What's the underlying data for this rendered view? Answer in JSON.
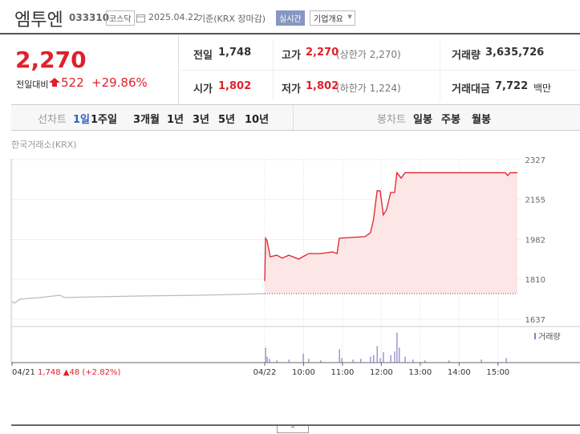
{
  "header": {
    "name": "엠투엔",
    "code": "033310",
    "market": "코스닥",
    "date": "2025.04.22",
    "basis": "기준(KRX 장마감)",
    "realtime": "실시간",
    "overview": "기업개요"
  },
  "quote": {
    "price": "2,270",
    "change_label": "전일대비",
    "change": "522",
    "change_pct": "+29.86%"
  },
  "stats": [
    {
      "label": "전일",
      "value": "1,748"
    },
    {
      "label": "고가",
      "value": "2,270",
      "note": "(상한가 2,270)"
    },
    {
      "label": "거래량",
      "value": "3,635,726"
    },
    {
      "label": "시가",
      "value": "1,802"
    },
    {
      "label": "저가",
      "value": "1,802",
      "note": "(하한가 1,224)"
    },
    {
      "label": "거래대금",
      "value": "7,722",
      "unit": "백만"
    }
  ],
  "tabs": {
    "line_label": "선차트",
    "line": [
      "1일",
      "1주일",
      "3개월",
      "1년",
      "3년",
      "5년",
      "10년"
    ],
    "candle_label": "봉차트",
    "candle": [
      "일봉",
      "주봉",
      "월봉"
    ]
  },
  "chart_data": {
    "type": "line",
    "source": "한국거래소(KRX)",
    "prev_summary": "1,748 ▲48 (+2.82%)",
    "xlim": [
      0,
      13
    ],
    "ylim": [
      1606,
      2330
    ],
    "yticks": [
      1637,
      1810,
      1982,
      2155,
      2327
    ],
    "xticks": [
      {
        "value": 0,
        "label": "04/21"
      },
      {
        "value": 6.5,
        "label": "04/22"
      },
      {
        "value": 7.5,
        "label": "10:00"
      },
      {
        "value": 8.5,
        "label": "11:00"
      },
      {
        "value": 9.5,
        "label": "12:00"
      },
      {
        "value": 10.5,
        "label": "13:00"
      },
      {
        "value": 11.5,
        "label": "14:00"
      },
      {
        "value": 12.5,
        "label": "15:00"
      }
    ],
    "base": 1748,
    "series": [
      {
        "color": "#bbbbbb",
        "x": [
          0,
          0.06,
          0.21,
          0.72,
          1.24,
          1.34,
          2.16,
          3.4,
          4.85,
          5.88,
          6.5
        ],
        "values": [
          1714,
          1707,
          1724,
          1731,
          1741,
          1731,
          1734,
          1738,
          1741,
          1745,
          1748
        ]
      },
      {
        "color": "#e0202b",
        "fill": "#fde6e6",
        "x": [
          6.5,
          6.52,
          6.56,
          6.64,
          6.81,
          6.95,
          7.12,
          7.37,
          7.63,
          7.94,
          8.25,
          8.36,
          8.42,
          8.77,
          9.08,
          9.22,
          9.3,
          9.39,
          9.47,
          9.55,
          9.63,
          9.74,
          9.84,
          9.9,
          10.01,
          10.11,
          10.31,
          10.62,
          11.04,
          12.07,
          12.69,
          12.75,
          12.81,
          13
        ],
        "values": [
          1802,
          1987,
          1977,
          1907,
          1914,
          1901,
          1914,
          1897,
          1921,
          1921,
          1928,
          1921,
          1987,
          1991,
          1994,
          2011,
          2070,
          2192,
          2192,
          2088,
          2109,
          2185,
          2185,
          2270,
          2247,
          2270,
          2270,
          2270,
          2270,
          2270,
          2270,
          2258,
          2270,
          2270
        ]
      }
    ],
    "volume": {
      "label": "거래량",
      "color": "#8a7cc6",
      "vlim": [
        0,
        45
      ],
      "x": [
        6.52,
        6.56,
        6.62,
        6.81,
        7.12,
        7.49,
        7.63,
        7.94,
        8.42,
        8.48,
        8.77,
        8.97,
        9.22,
        9.3,
        9.39,
        9.47,
        9.55,
        9.74,
        9.84,
        9.9,
        9.96,
        10.11,
        10.31,
        10.62,
        11.24,
        12.07,
        12.71
      ],
      "values": [
        20,
        8,
        5,
        3,
        4,
        12,
        5,
        3,
        18,
        6,
        4,
        5,
        8,
        10,
        22,
        6,
        14,
        10,
        15,
        40,
        20,
        8,
        4,
        3,
        3,
        4,
        6
      ]
    }
  }
}
